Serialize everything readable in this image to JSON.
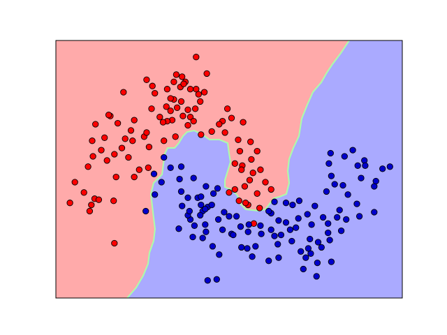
{
  "chart_data": {
    "type": "scatter",
    "title": "",
    "xlabel": "",
    "ylabel": "",
    "grid": false,
    "legend": "none",
    "xlim": [
      -1.7,
      2.5
    ],
    "ylim": [
      -1.12,
      1.37
    ],
    "region_colors": {
      "class_0": "#ffaaaa",
      "class_1": "#aaaaff",
      "boundary": "#aaffaa"
    },
    "series": [
      {
        "color": "#ff0000",
        "values": [
          [
            -0.88,
            0.87
          ],
          [
            -0.53,
            0.93
          ],
          [
            -0.6,
            0.99
          ],
          [
            -0.17,
            1.02
          ],
          [
            0.13,
            1.05
          ],
          [
            0.0,
            0.9
          ],
          [
            -0.19,
            0.92
          ],
          [
            0.38,
            0.71
          ],
          [
            0.57,
            0.58
          ],
          [
            0.66,
            0.39
          ],
          [
            0.74,
            0.3
          ],
          [
            0.78,
            0.12
          ],
          [
            0.91,
            -0.07
          ],
          [
            0.77,
            -0.25
          ],
          [
            0.63,
            -0.22
          ],
          [
            -0.07,
            0.63
          ],
          [
            -0.63,
            0.44
          ],
          [
            -0.39,
            0.4
          ],
          [
            -0.57,
            0.34
          ],
          [
            -1.22,
            0.56
          ],
          [
            -1.31,
            0.15
          ],
          [
            -1.47,
            0.0
          ],
          [
            -1.29,
            -0.28
          ],
          [
            -1.53,
            -0.2
          ],
          [
            -0.97,
            0.05
          ],
          [
            -0.86,
            0.42
          ],
          [
            -0.99,
            -0.59
          ],
          [
            0.47,
            -0.07
          ],
          [
            -0.27,
            0.8
          ],
          [
            -0.35,
            0.9
          ],
          [
            0.05,
            0.78
          ],
          [
            0.35,
            0.48
          ],
          [
            0.53,
            0.3
          ],
          [
            -0.29,
            0.6
          ],
          [
            -0.01,
            0.71
          ],
          [
            -0.77,
            0.4
          ],
          [
            0.47,
            0.18
          ],
          [
            -0.75,
            0.6
          ],
          [
            -1.26,
            0.4
          ],
          [
            -0.27,
            0.97
          ],
          [
            -0.18,
            0.78
          ],
          [
            0.74,
            -0.11
          ],
          [
            0.59,
            -0.04
          ],
          [
            -0.25,
            0.44
          ],
          [
            -1.11,
            0.43
          ],
          [
            -0.82,
            0.24
          ],
          [
            0.19,
            0.49
          ],
          [
            0.06,
            0.46
          ],
          [
            -1.23,
            -0.16
          ],
          [
            -0.9,
            0.33
          ],
          [
            0.03,
            0.85
          ],
          [
            -1.18,
            -0.17
          ],
          [
            0.69,
            0.09
          ],
          [
            0.56,
            0.16
          ],
          [
            0.51,
            0.41
          ],
          [
            0.32,
            0.59
          ],
          [
            -0.07,
            0.9
          ],
          [
            0.52,
            -0.18
          ],
          [
            -0.36,
            0.73
          ],
          [
            -1.25,
            0.25
          ],
          [
            -1.15,
            0.31
          ],
          [
            -0.23,
            0.72
          ],
          [
            -0.95,
            0.57
          ],
          [
            -0.31,
            0.81
          ],
          [
            -0.99,
            0.27
          ],
          [
            -1.04,
            0.64
          ],
          [
            -1.0,
            -0.18
          ],
          [
            -0.24,
            1.04
          ],
          [
            -0.31,
            0.69
          ],
          [
            0.6,
            -0.2
          ],
          [
            0.7,
            -0.4
          ],
          [
            0.4,
            -0.1
          ],
          [
            -0.1,
            0.55
          ],
          [
            -0.75,
            0.05
          ],
          [
            -1.06,
            0.65
          ],
          [
            -0.79,
            0.5
          ],
          [
            -0.13,
            0.97
          ],
          [
            -0.1,
            0.7
          ],
          [
            -0.54,
            0.71
          ],
          [
            -1.27,
            -0.22
          ],
          [
            0.84,
            0.0
          ],
          [
            -1.36,
            -0.1
          ],
          [
            -0.35,
            0.59
          ],
          [
            0.55,
            0.12
          ],
          [
            0.67,
            0.22
          ],
          [
            -0.6,
            0.48
          ],
          [
            0.43,
            0.62
          ],
          [
            -0.15,
            0.95
          ],
          [
            -0.5,
            0.86
          ],
          [
            -0.4,
            0.58
          ],
          [
            0.65,
            0.02
          ],
          [
            -0.03,
            0.59
          ],
          [
            0.28,
            0.56
          ],
          [
            -0.16,
            0.64
          ],
          [
            -0.44,
            0.63
          ],
          [
            -1.08,
            0.21
          ],
          [
            0.0,
            1.21
          ],
          [
            0.1,
            0.87
          ],
          [
            -0.58,
            0.14
          ],
          [
            -0.69,
            0.12
          ]
        ]
      },
      {
        "color": "#0000cc",
        "values": [
          [
            -0.31,
            0.14
          ],
          [
            -0.42,
            0.0
          ],
          [
            -0.5,
            -0.12
          ],
          [
            -0.18,
            0.15
          ],
          [
            -0.03,
            0.04
          ],
          [
            0.06,
            -0.22
          ],
          [
            0.14,
            -0.24
          ],
          [
            0.26,
            -0.06
          ],
          [
            0.27,
            -0.36
          ],
          [
            0.43,
            -0.5
          ],
          [
            0.63,
            -0.48
          ],
          [
            0.91,
            -0.46
          ],
          [
            1.09,
            -0.39
          ],
          [
            1.21,
            -0.44
          ],
          [
            1.4,
            -0.41
          ],
          [
            1.54,
            -0.34
          ],
          [
            1.58,
            -0.09
          ],
          [
            1.68,
            -0.02
          ],
          [
            2.0,
            0.04
          ],
          [
            2.16,
            -0.04
          ],
          [
            2.18,
            0.01
          ],
          [
            2.35,
            0.15
          ],
          [
            2.26,
            0.13
          ],
          [
            2.04,
            0.21
          ],
          [
            1.61,
            0.18
          ],
          [
            1.9,
            0.31
          ],
          [
            1.8,
            0.25
          ],
          [
            -0.2,
            0.03
          ],
          [
            -0.18,
            -0.09
          ],
          [
            -0.1,
            -0.15
          ],
          [
            -0.07,
            -0.36
          ],
          [
            -0.02,
            -0.42
          ],
          [
            0.08,
            -0.54
          ],
          [
            0.28,
            -0.7
          ],
          [
            0.14,
            -0.95
          ],
          [
            0.25,
            -0.94
          ],
          [
            0.55,
            -0.63
          ],
          [
            0.72,
            -0.62
          ],
          [
            1.16,
            -0.57
          ],
          [
            1.27,
            -0.67
          ],
          [
            1.33,
            -0.73
          ],
          [
            1.48,
            -0.58
          ],
          [
            1.6,
            -0.49
          ],
          [
            1.71,
            -0.34
          ],
          [
            1.95,
            -0.21
          ],
          [
            1.98,
            -0.33
          ],
          [
            2.16,
            -0.29
          ],
          [
            -0.61,
            -0.28
          ],
          [
            0.12,
            -0.48
          ],
          [
            0.2,
            -0.62
          ],
          [
            0.32,
            -0.46
          ],
          [
            0.49,
            -0.33
          ],
          [
            0.78,
            -0.42
          ],
          [
            1.03,
            -0.51
          ],
          [
            1.24,
            -0.35
          ],
          [
            1.38,
            -0.55
          ],
          [
            1.52,
            -0.63
          ],
          [
            1.64,
            -0.77
          ],
          [
            0.91,
            -0.3
          ],
          [
            0.95,
            -0.52
          ],
          [
            0.99,
            -0.6
          ],
          [
            0.64,
            -0.41
          ],
          [
            1.35,
            -0.31
          ],
          [
            1.74,
            -0.27
          ],
          [
            1.78,
            -0.03
          ],
          [
            1.84,
            -0.12
          ],
          [
            1.47,
            -0.78
          ],
          [
            1.46,
            -0.91
          ],
          [
            1.0,
            -0.37
          ],
          [
            0.08,
            -0.28
          ],
          [
            0.21,
            -0.11
          ],
          [
            -0.17,
            -0.23
          ],
          [
            0.02,
            -0.15
          ],
          [
            0.11,
            -0.41
          ],
          [
            0.34,
            -0.29
          ],
          [
            0.4,
            -0.33
          ],
          [
            1.09,
            -0.2
          ],
          [
            1.25,
            -0.18
          ],
          [
            1.44,
            -0.23
          ],
          [
            1.6,
            -0.4
          ],
          [
            1.82,
            -0.36
          ],
          [
            -0.1,
            -0.32
          ],
          [
            0.06,
            -0.14
          ],
          [
            0.11,
            -0.26
          ],
          [
            0.68,
            -0.72
          ],
          [
            0.79,
            -0.5
          ],
          [
            0.88,
            -0.28
          ],
          [
            1.14,
            -0.46
          ],
          [
            1.62,
            -0.56
          ],
          [
            1.76,
            -0.47
          ],
          [
            2.05,
            0.16
          ],
          [
            1.64,
            0.06
          ],
          [
            1.63,
            0.28
          ],
          [
            1.96,
            0.16
          ],
          [
            -0.51,
            0.08
          ],
          [
            -0.21,
            -0.45
          ],
          [
            -0.04,
            -0.53
          ],
          [
            0.45,
            -0.51
          ],
          [
            0.62,
            -0.64
          ],
          [
            0.88,
            -0.76
          ],
          [
            1.0,
            -0.73
          ],
          [
            1.3,
            -0.84
          ],
          [
            1.39,
            -0.69
          ],
          [
            0.05,
            -0.32
          ],
          [
            0.19,
            -0.22
          ],
          [
            0.54,
            -0.43
          ],
          [
            0.95,
            -0.19
          ],
          [
            1.17,
            -0.22
          ],
          [
            1.36,
            -0.64
          ],
          [
            -0.08,
            -0.28
          ],
          [
            0.12,
            -0.04
          ],
          [
            -0.39,
            0.24
          ]
        ]
      }
    ]
  }
}
